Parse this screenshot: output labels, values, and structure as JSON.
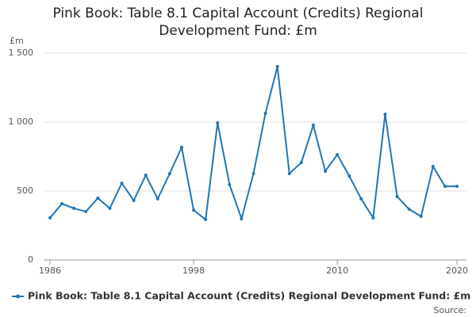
{
  "chart_data": {
    "type": "line",
    "title": "Pink Book: Table 8.1 Capital Account (Credits) Regional Development Fund: £m",
    "y_label": "£m",
    "source": "Source:",
    "x": [
      1986,
      1987,
      1988,
      1989,
      1990,
      1991,
      1992,
      1993,
      1994,
      1995,
      1996,
      1997,
      1998,
      1999,
      2000,
      2001,
      2002,
      2003,
      2004,
      2005,
      2006,
      2007,
      2008,
      2009,
      2010,
      2011,
      2012,
      2013,
      2014,
      2015,
      2016,
      2017,
      2018,
      2019,
      2020
    ],
    "series": [
      {
        "name": "Pink Book: Table 8.1 Capital Account (Credits) Regional Development Fund: £m",
        "color": "#1f77b4",
        "values": [
          305,
          408,
          374,
          351,
          448,
          374,
          557,
          431,
          615,
          443,
          626,
          816,
          362,
          293,
          994,
          546,
          299,
          626,
          1063,
          1402,
          626,
          707,
          977,
          644,
          764,
          609,
          443,
          305,
          1057,
          460,
          368,
          316,
          678,
          534,
          534
        ]
      }
    ],
    "xlim": [
      1986,
      2020
    ],
    "xticks": [
      1986,
      1998,
      2010,
      2020
    ],
    "ylim": [
      0,
      1500
    ],
    "yticks": [
      0,
      500,
      {
        "value": 1000,
        "label": "1 000"
      },
      {
        "value": 1500,
        "label": "1 500"
      }
    ],
    "grid": true
  }
}
